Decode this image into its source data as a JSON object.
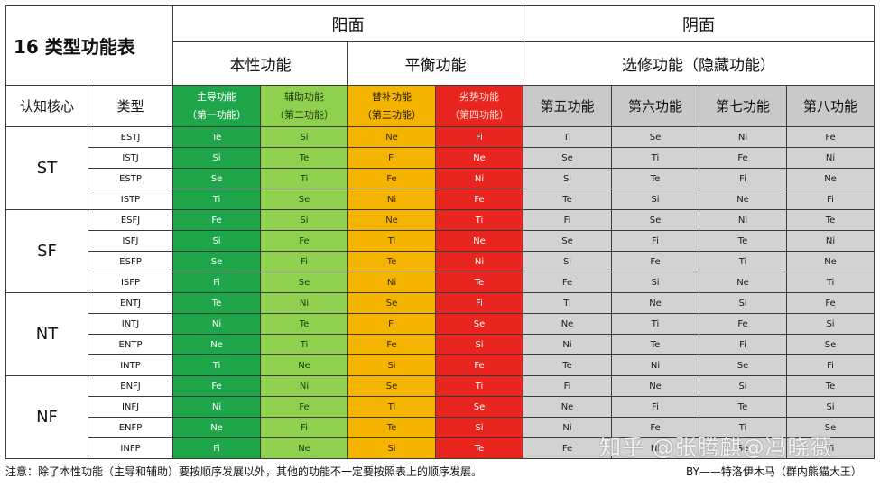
{
  "table": {
    "title": "16 类型功能表",
    "zone_yang": "阳面",
    "zone_yin": "阴面",
    "group_core": "本性功能",
    "group_balance": "平衡功能",
    "group_optional": "选修功能（隐藏功能）",
    "col_core": "认知核心",
    "col_type": "类型",
    "fn_headers": [
      {
        "line1": "主导功能",
        "line2": "（第一功能）"
      },
      {
        "line1": "辅助功能",
        "line2": "（第二功能）"
      },
      {
        "line1": "替补功能",
        "line2": "（第三功能）"
      },
      {
        "line1": "劣势功能",
        "line2": "（第四功能）"
      }
    ],
    "shadow_headers": [
      "第五功能",
      "第六功能",
      "第七功能",
      "第八功能"
    ],
    "colors": {
      "dominant": "#1fa64a",
      "auxiliary": "#8fd14f",
      "tertiary": "#f5b400",
      "inferior": "#e8251e",
      "shadow": "#d2d2d2"
    },
    "groups": [
      {
        "core": "ST",
        "rows": [
          {
            "type": "ESTJ",
            "f": [
              "Te",
              "Si",
              "Ne",
              "Fi",
              "Ti",
              "Se",
              "Ni",
              "Fe"
            ]
          },
          {
            "type": "ISTJ",
            "f": [
              "Si",
              "Te",
              "Fi",
              "Ne",
              "Se",
              "Ti",
              "Fe",
              "Ni"
            ]
          },
          {
            "type": "ESTP",
            "f": [
              "Se",
              "Ti",
              "Fe",
              "Ni",
              "Si",
              "Te",
              "Fi",
              "Ne"
            ]
          },
          {
            "type": "ISTP",
            "f": [
              "Ti",
              "Se",
              "Ni",
              "Fe",
              "Te",
              "Si",
              "Ne",
              "Fi"
            ]
          }
        ]
      },
      {
        "core": "SF",
        "rows": [
          {
            "type": "ESFJ",
            "f": [
              "Fe",
              "Si",
              "Ne",
              "Ti",
              "Fi",
              "Se",
              "Ni",
              "Te"
            ]
          },
          {
            "type": "ISFJ",
            "f": [
              "Si",
              "Fe",
              "Ti",
              "Ne",
              "Se",
              "Fi",
              "Te",
              "Ni"
            ]
          },
          {
            "type": "ESFP",
            "f": [
              "Se",
              "Fi",
              "Te",
              "Ni",
              "Si",
              "Fe",
              "Ti",
              "Ne"
            ]
          },
          {
            "type": "ISFP",
            "f": [
              "Fi",
              "Se",
              "Ni",
              "Te",
              "Fe",
              "Si",
              "Ne",
              "Ti"
            ]
          }
        ]
      },
      {
        "core": "NT",
        "rows": [
          {
            "type": "ENTJ",
            "f": [
              "Te",
              "Ni",
              "Se",
              "Fi",
              "Ti",
              "Ne",
              "Si",
              "Fe"
            ]
          },
          {
            "type": "INTJ",
            "f": [
              "Ni",
              "Te",
              "Fi",
              "Se",
              "Ne",
              "Ti",
              "Fe",
              "Si"
            ]
          },
          {
            "type": "ENTP",
            "f": [
              "Ne",
              "Ti",
              "Fe",
              "Si",
              "Ni",
              "Te",
              "Fi",
              "Se"
            ]
          },
          {
            "type": "INTP",
            "f": [
              "Ti",
              "Ne",
              "Si",
              "Fe",
              "Te",
              "Ni",
              "Se",
              "Fi"
            ]
          }
        ]
      },
      {
        "core": "NF",
        "rows": [
          {
            "type": "ENFJ",
            "f": [
              "Fe",
              "Ni",
              "Se",
              "Ti",
              "Fi",
              "Ne",
              "Si",
              "Te"
            ]
          },
          {
            "type": "INFJ",
            "f": [
              "Ni",
              "Fe",
              "Ti",
              "Se",
              "Ne",
              "Fi",
              "Te",
              "Si"
            ]
          },
          {
            "type": "ENFP",
            "f": [
              "Ne",
              "Fi",
              "Te",
              "Si",
              "Ni",
              "Fe",
              "Ti",
              "Se"
            ]
          },
          {
            "type": "INFP",
            "f": [
              "Fi",
              "Ne",
              "Si",
              "Te",
              "Fe",
              "Ni",
              "Se",
              "Ti"
            ]
          }
        ]
      }
    ]
  },
  "footer": {
    "note": "注意：除了本性功能（主导和辅助）要按顺序发展以外，其他的功能不一定要按照表上的顺序发展。",
    "byline": "BY——特洛伊木马（群内熊猫大王）",
    "watermark": "知乎 @张腾麒@冯晓薇"
  }
}
